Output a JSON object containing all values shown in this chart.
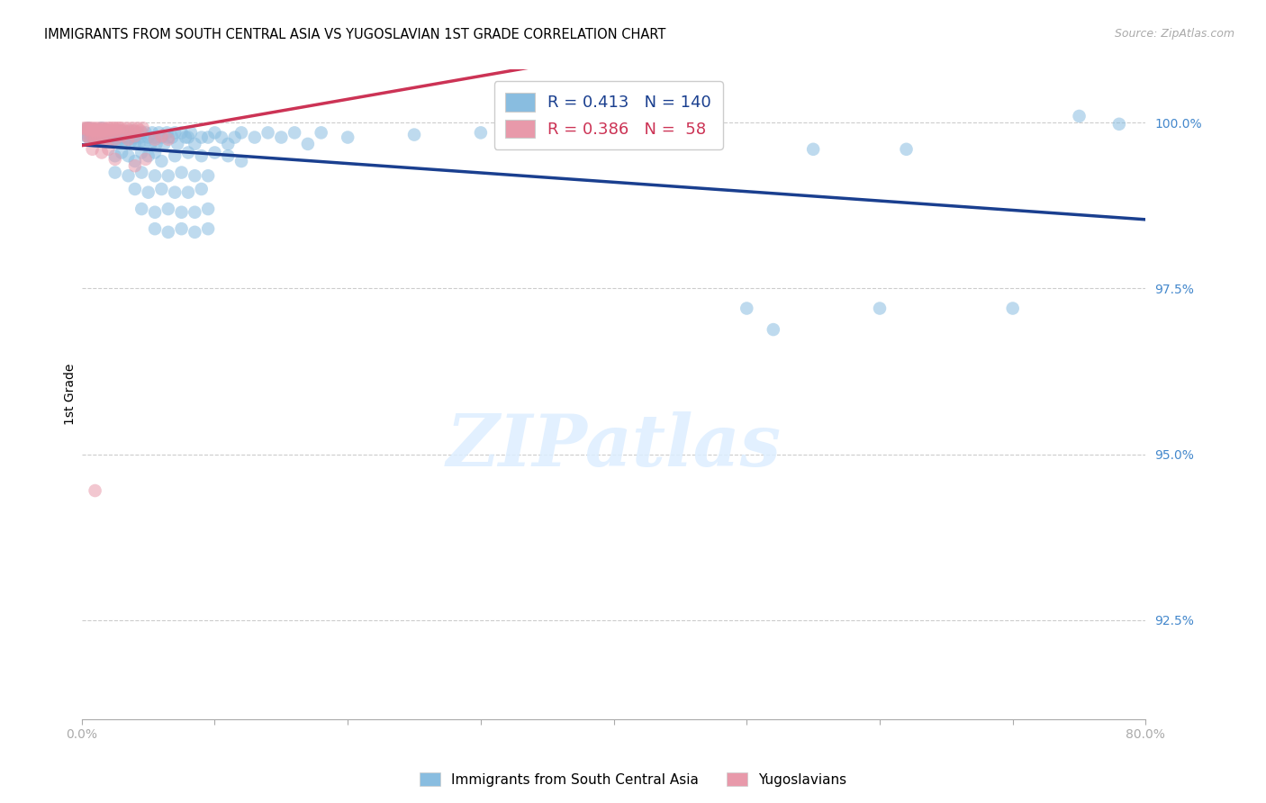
{
  "title": "IMMIGRANTS FROM SOUTH CENTRAL ASIA VS YUGOSLAVIAN 1ST GRADE CORRELATION CHART",
  "source": "Source: ZipAtlas.com",
  "ylabel": "1st Grade",
  "ylabel_right_values": [
    1.0,
    0.975,
    0.95,
    0.925
  ],
  "ylabel_right_labels": [
    "100.0%",
    "97.5%",
    "95.0%",
    "92.5%"
  ],
  "xlim": [
    0.0,
    0.8
  ],
  "ylim": [
    0.91,
    1.008
  ],
  "legend_blue_R": "0.413",
  "legend_blue_N": "140",
  "legend_pink_R": "0.386",
  "legend_pink_N": "58",
  "watermark": "ZIPatlas",
  "blue_color": "#89bde0",
  "pink_color": "#e899aa",
  "blue_line_color": "#1a3f8f",
  "pink_line_color": "#cc3355",
  "blue_dots": [
    [
      0.002,
      0.9985
    ],
    [
      0.003,
      0.999
    ],
    [
      0.003,
      0.998
    ],
    [
      0.004,
      0.9988
    ],
    [
      0.005,
      0.9992
    ],
    [
      0.005,
      0.9978
    ],
    [
      0.006,
      0.9985
    ],
    [
      0.006,
      0.9982
    ],
    [
      0.007,
      0.9988
    ],
    [
      0.007,
      0.9975
    ],
    [
      0.008,
      0.999
    ],
    [
      0.008,
      0.998
    ],
    [
      0.009,
      0.9985
    ],
    [
      0.009,
      0.9978
    ],
    [
      0.01,
      0.9988
    ],
    [
      0.01,
      0.9972
    ],
    [
      0.011,
      0.9985
    ],
    [
      0.011,
      0.9982
    ],
    [
      0.012,
      0.9988
    ],
    [
      0.012,
      0.9975
    ],
    [
      0.013,
      0.9985
    ],
    [
      0.013,
      0.998
    ],
    [
      0.014,
      0.9988
    ],
    [
      0.015,
      0.9992
    ],
    [
      0.016,
      0.9985
    ],
    [
      0.016,
      0.9978
    ],
    [
      0.017,
      0.9975
    ],
    [
      0.018,
      0.9988
    ],
    [
      0.019,
      0.9982
    ],
    [
      0.02,
      0.9985
    ],
    [
      0.02,
      0.9972
    ],
    [
      0.021,
      0.9988
    ],
    [
      0.022,
      0.9982
    ],
    [
      0.023,
      0.9975
    ],
    [
      0.025,
      0.9988
    ],
    [
      0.025,
      0.9975
    ],
    [
      0.026,
      0.9985
    ],
    [
      0.027,
      0.9975
    ],
    [
      0.028,
      0.9988
    ],
    [
      0.029,
      0.9975
    ],
    [
      0.03,
      0.9988
    ],
    [
      0.03,
      0.997
    ],
    [
      0.031,
      0.9978
    ],
    [
      0.032,
      0.9985
    ],
    [
      0.033,
      0.997
    ],
    [
      0.035,
      0.9985
    ],
    [
      0.036,
      0.9978
    ],
    [
      0.037,
      0.9972
    ],
    [
      0.038,
      0.9988
    ],
    [
      0.039,
      0.9978
    ],
    [
      0.04,
      0.9978
    ],
    [
      0.04,
      0.9968
    ],
    [
      0.042,
      0.9985
    ],
    [
      0.043,
      0.9968
    ],
    [
      0.044,
      0.9978
    ],
    [
      0.045,
      0.9985
    ],
    [
      0.047,
      0.9968
    ],
    [
      0.048,
      0.9985
    ],
    [
      0.05,
      0.9978
    ],
    [
      0.052,
      0.9968
    ],
    [
      0.053,
      0.9985
    ],
    [
      0.055,
      0.9978
    ],
    [
      0.056,
      0.9968
    ],
    [
      0.058,
      0.9985
    ],
    [
      0.06,
      0.9978
    ],
    [
      0.062,
      0.9968
    ],
    [
      0.064,
      0.9985
    ],
    [
      0.065,
      0.9978
    ],
    [
      0.068,
      0.9978
    ],
    [
      0.07,
      0.9985
    ],
    [
      0.072,
      0.9968
    ],
    [
      0.075,
      0.9985
    ],
    [
      0.078,
      0.9978
    ],
    [
      0.08,
      0.9978
    ],
    [
      0.082,
      0.9985
    ],
    [
      0.085,
      0.9968
    ],
    [
      0.09,
      0.9978
    ],
    [
      0.095,
      0.9978
    ],
    [
      0.1,
      0.9985
    ],
    [
      0.105,
      0.9978
    ],
    [
      0.11,
      0.9968
    ],
    [
      0.115,
      0.9978
    ],
    [
      0.12,
      0.9985
    ],
    [
      0.13,
      0.9978
    ],
    [
      0.025,
      0.995
    ],
    [
      0.03,
      0.9955
    ],
    [
      0.035,
      0.995
    ],
    [
      0.04,
      0.9942
    ],
    [
      0.045,
      0.9955
    ],
    [
      0.05,
      0.995
    ],
    [
      0.055,
      0.9955
    ],
    [
      0.06,
      0.9942
    ],
    [
      0.07,
      0.995
    ],
    [
      0.08,
      0.9955
    ],
    [
      0.09,
      0.995
    ],
    [
      0.1,
      0.9955
    ],
    [
      0.11,
      0.995
    ],
    [
      0.12,
      0.9942
    ],
    [
      0.025,
      0.9925
    ],
    [
      0.035,
      0.992
    ],
    [
      0.045,
      0.9925
    ],
    [
      0.055,
      0.992
    ],
    [
      0.065,
      0.992
    ],
    [
      0.075,
      0.9925
    ],
    [
      0.085,
      0.992
    ],
    [
      0.095,
      0.992
    ],
    [
      0.04,
      0.99
    ],
    [
      0.05,
      0.9895
    ],
    [
      0.06,
      0.99
    ],
    [
      0.07,
      0.9895
    ],
    [
      0.08,
      0.9895
    ],
    [
      0.09,
      0.99
    ],
    [
      0.045,
      0.987
    ],
    [
      0.055,
      0.9865
    ],
    [
      0.065,
      0.987
    ],
    [
      0.075,
      0.9865
    ],
    [
      0.085,
      0.9865
    ],
    [
      0.095,
      0.987
    ],
    [
      0.055,
      0.984
    ],
    [
      0.065,
      0.9835
    ],
    [
      0.075,
      0.984
    ],
    [
      0.085,
      0.9835
    ],
    [
      0.095,
      0.984
    ],
    [
      0.14,
      0.9985
    ],
    [
      0.15,
      0.9978
    ],
    [
      0.16,
      0.9985
    ],
    [
      0.17,
      0.9968
    ],
    [
      0.18,
      0.9985
    ],
    [
      0.2,
      0.9978
    ],
    [
      0.25,
      0.9982
    ],
    [
      0.3,
      0.9985
    ],
    [
      0.32,
      0.9982
    ],
    [
      0.35,
      0.9985
    ],
    [
      0.42,
      0.9985
    ],
    [
      0.5,
      0.972
    ],
    [
      0.52,
      0.9688
    ],
    [
      0.55,
      0.996
    ],
    [
      0.6,
      0.972
    ],
    [
      0.62,
      0.996
    ],
    [
      0.7,
      0.972
    ],
    [
      0.75,
      1.001
    ],
    [
      0.78,
      0.9998
    ]
  ],
  "pink_dots": [
    [
      0.002,
      0.9992
    ],
    [
      0.003,
      0.999
    ],
    [
      0.004,
      0.9992
    ],
    [
      0.005,
      0.999
    ],
    [
      0.006,
      0.9992
    ],
    [
      0.007,
      0.9988
    ],
    [
      0.008,
      0.9992
    ],
    [
      0.009,
      0.999
    ],
    [
      0.01,
      0.9988
    ],
    [
      0.011,
      0.9992
    ],
    [
      0.012,
      0.999
    ],
    [
      0.013,
      0.9988
    ],
    [
      0.014,
      0.9992
    ],
    [
      0.015,
      0.999
    ],
    [
      0.016,
      0.9988
    ],
    [
      0.017,
      0.9992
    ],
    [
      0.018,
      0.999
    ],
    [
      0.019,
      0.9988
    ],
    [
      0.02,
      0.9992
    ],
    [
      0.021,
      0.9988
    ],
    [
      0.022,
      0.9992
    ],
    [
      0.023,
      0.9988
    ],
    [
      0.024,
      0.9992
    ],
    [
      0.025,
      0.9988
    ],
    [
      0.026,
      0.9992
    ],
    [
      0.027,
      0.9988
    ],
    [
      0.028,
      0.9992
    ],
    [
      0.03,
      0.9992
    ],
    [
      0.032,
      0.9988
    ],
    [
      0.034,
      0.9992
    ],
    [
      0.036,
      0.9988
    ],
    [
      0.038,
      0.9992
    ],
    [
      0.04,
      0.9988
    ],
    [
      0.042,
      0.9992
    ],
    [
      0.044,
      0.9988
    ],
    [
      0.046,
      0.9992
    ],
    [
      0.004,
      0.998
    ],
    [
      0.006,
      0.9975
    ],
    [
      0.008,
      0.998
    ],
    [
      0.01,
      0.9975
    ],
    [
      0.012,
      0.998
    ],
    [
      0.014,
      0.9975
    ],
    [
      0.016,
      0.998
    ],
    [
      0.018,
      0.9975
    ],
    [
      0.02,
      0.998
    ],
    [
      0.025,
      0.9975
    ],
    [
      0.03,
      0.998
    ],
    [
      0.035,
      0.9975
    ],
    [
      0.04,
      0.998
    ],
    [
      0.055,
      0.9975
    ],
    [
      0.06,
      0.998
    ],
    [
      0.065,
      0.9975
    ],
    [
      0.008,
      0.996
    ],
    [
      0.015,
      0.9955
    ],
    [
      0.02,
      0.996
    ],
    [
      0.025,
      0.9945
    ],
    [
      0.04,
      0.9935
    ],
    [
      0.048,
      0.9945
    ],
    [
      0.01,
      0.9445
    ]
  ]
}
